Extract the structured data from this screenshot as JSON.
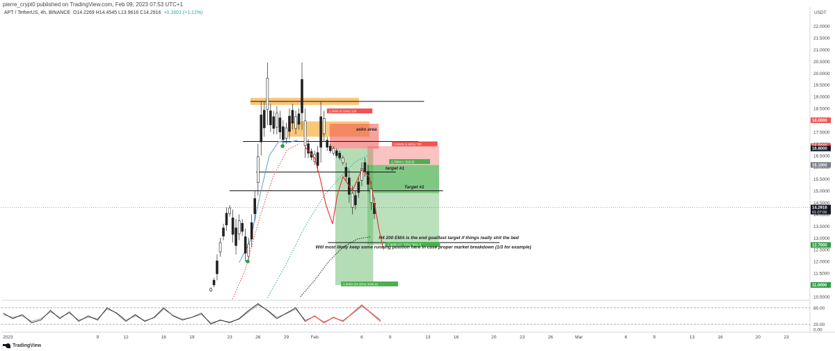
{
  "header": {
    "published": "pierre_crypt0 published on TradingView.com, Feb 09, 2023 07:53 UTC+1",
    "symbol": "APT / TetherUS, 4h, BINANCE",
    "ohlc": "O14.2269 H14.4545 L13.9616 C14.2916",
    "change": "+0.1601 (+1.12%)"
  },
  "footer": {
    "brand": "TradingView"
  },
  "colors": {
    "up": "#26a69a",
    "down": "#ef5350",
    "candle": "#222222",
    "supply": "#f7a930",
    "red_zone": "#ef5350",
    "green_zone": "#4caf50",
    "ema_blue": "#5b9bd5",
    "ema_red": "#e53935",
    "ema_teal": "#26a69a"
  },
  "chart_data": {
    "type": "candlestick",
    "currency": "USDT",
    "y_axis_ticks": [
      "22.0000",
      "21.5000",
      "21.0000",
      "20.5000",
      "20.0000",
      "19.5000",
      "19.0000",
      "18.5000",
      "18.0000",
      "17.5000",
      "17.0000",
      "16.5000",
      "16.0000",
      "15.5000",
      "15.0000",
      "14.5000",
      "14.0000",
      "13.5000",
      "13.0000",
      "12.5000",
      "12.0000",
      "11.5000",
      "11.0000",
      "10.5000"
    ],
    "ylim": [
      10.35,
      22.4
    ],
    "x_axis_ticks": [
      {
        "label": "2023",
        "day": -1.5
      },
      {
        "label": "9",
        "day": 8
      },
      {
        "label": "12",
        "day": 11
      },
      {
        "label": "16",
        "day": 15
      },
      {
        "label": "19",
        "day": 18
      },
      {
        "label": "23",
        "day": 22
      },
      {
        "label": "26",
        "day": 25
      },
      {
        "label": "29",
        "day": 28
      },
      {
        "label": "Feb",
        "day": 31
      },
      {
        "label": "6",
        "day": 36
      },
      {
        "label": "9",
        "day": 39
      },
      {
        "label": "13",
        "day": 43
      },
      {
        "label": "16",
        "day": 46
      },
      {
        "label": "20",
        "day": 50
      },
      {
        "label": "23",
        "day": 53
      },
      {
        "label": "26",
        "day": 56
      },
      {
        "label": "Mar",
        "day": 59
      },
      {
        "label": "6",
        "day": 64
      },
      {
        "label": "9",
        "day": 67
      },
      {
        "label": "13",
        "day": 71
      },
      {
        "label": "16",
        "day": 74
      },
      {
        "label": "20",
        "day": 78
      },
      {
        "label": "23",
        "day": 81
      }
    ],
    "price_labels": [
      {
        "label": "18.0000",
        "value": 18.0,
        "color": "#ef5350"
      },
      {
        "label": "16.9000",
        "value": 16.9,
        "color": "#ef5350"
      },
      {
        "label": "16.8000",
        "value": 16.8,
        "color": "#131722"
      },
      {
        "label": "16.1000",
        "value": 16.1,
        "color": "#787b86"
      },
      {
        "label": "14.2916",
        "value": 14.2916,
        "sub": "01:07:00",
        "color": "#131722"
      },
      {
        "label": "12.7000",
        "value": 12.7,
        "color": "#2e9e44"
      },
      {
        "label": "11.0000",
        "value": 11.0,
        "color": "#2e9e44"
      }
    ],
    "candles": [
      [
        20,
        10.7,
        10.9
      ],
      [
        20.33,
        10.9,
        11.3
      ],
      [
        20.66,
        11.2,
        12.3
      ],
      [
        21,
        12.2,
        13.0
      ],
      [
        21.33,
        12.9,
        13.6
      ],
      [
        21.66,
        13.3,
        14.3
      ],
      [
        22,
        13.9,
        14.4
      ],
      [
        22.33,
        12.8,
        14.2
      ],
      [
        22.66,
        12.3,
        13.8
      ],
      [
        23,
        12.9,
        14.0
      ],
      [
        23.33,
        13.1,
        13.8
      ],
      [
        23.66,
        12.0,
        13.4
      ],
      [
        24,
        11.95,
        13.0
      ],
      [
        24.33,
        12.6,
        14.0
      ],
      [
        24.66,
        13.7,
        15.0
      ],
      [
        25,
        14.8,
        17.0
      ],
      [
        25.33,
        16.5,
        18.8
      ],
      [
        25.66,
        17.3,
        18.8
      ],
      [
        26,
        17.8,
        20.45
      ],
      [
        26.33,
        17.5,
        18.7
      ],
      [
        26.66,
        17.4,
        18.4
      ],
      [
        27,
        17.4,
        18.6
      ],
      [
        27.33,
        17.2,
        18.4
      ],
      [
        27.66,
        16.9,
        18.0
      ],
      [
        28,
        17.0,
        17.9
      ],
      [
        28.33,
        17.2,
        18.5
      ],
      [
        28.66,
        17.6,
        18.7
      ],
      [
        29,
        17.4,
        18.4
      ],
      [
        29.33,
        17.6,
        18.5
      ],
      [
        29.66,
        17.6,
        20.45
      ],
      [
        30,
        16.4,
        18.5
      ],
      [
        30.33,
        16.4,
        17.2
      ],
      [
        30.66,
        16.3,
        16.8
      ],
      [
        31,
        16.1,
        16.7
      ],
      [
        31.33,
        15.8,
        16.9
      ],
      [
        31.66,
        16.2,
        18.8
      ],
      [
        32,
        17.1,
        18.4
      ],
      [
        32.33,
        16.7,
        17.3
      ],
      [
        32.66,
        16.6,
        17.0
      ],
      [
        33,
        16.5,
        16.9
      ],
      [
        33.33,
        16.4,
        16.8
      ],
      [
        33.66,
        16.3,
        16.7
      ],
      [
        34,
        16.1,
        16.5
      ],
      [
        34.33,
        15.4,
        16.2
      ],
      [
        34.66,
        14.5,
        15.9
      ],
      [
        35,
        14.0,
        15.2
      ],
      [
        35.33,
        14.2,
        15.0
      ],
      [
        35.66,
        14.7,
        15.6
      ],
      [
        36,
        15.2,
        16.2
      ],
      [
        36.33,
        15.6,
        16.4
      ],
      [
        36.66,
        15.0,
        16.1
      ],
      [
        37,
        14.2,
        15.4
      ],
      [
        37.33,
        13.8,
        14.7
      ]
    ],
    "ema_blue": [
      [
        23,
        11.95
      ],
      [
        24.2,
        12.9
      ],
      [
        25.2,
        14.8
      ],
      [
        26.2,
        16.5
      ],
      [
        27.2,
        17.1
      ],
      [
        28.2,
        17.05
      ],
      [
        29.2,
        17.15
      ]
    ],
    "ema_red_dotted": [
      [
        22.3,
        10.4
      ],
      [
        23.6,
        11.6
      ],
      [
        25.2,
        13.9
      ],
      [
        26.6,
        15.6
      ],
      [
        28.1,
        16.75
      ],
      [
        29.4,
        17.0
      ]
    ],
    "ema_teal_dotted": [
      [
        26.0,
        10.45
      ],
      [
        28.0,
        11.9
      ],
      [
        30.0,
        13.5
      ],
      [
        32.0,
        14.8
      ],
      [
        34.0,
        15.7
      ],
      [
        35.2,
        16.2
      ],
      [
        36.6,
        16.5
      ]
    ],
    "ema_black_dotted": [
      [
        29.5,
        10.5
      ],
      [
        31.0,
        11.2
      ],
      [
        32.5,
        12.0
      ],
      [
        34.0,
        12.6
      ],
      [
        35.5,
        12.95
      ],
      [
        37.0,
        13.05
      ]
    ],
    "ema_red_solid": [
      [
        30.0,
        16.85
      ],
      [
        31.0,
        16.4
      ],
      [
        31.6,
        15.5
      ],
      [
        32.2,
        14.4
      ],
      [
        32.9,
        13.6
      ],
      [
        33.4,
        14.8
      ],
      [
        34.0,
        15.6
      ],
      [
        35.0,
        15.0
      ],
      [
        36.0,
        15.9
      ],
      [
        36.8,
        15.6
      ],
      [
        37.3,
        14.6
      ],
      [
        37.8,
        13.4
      ],
      [
        38.3,
        12.5
      ]
    ],
    "supply_zones": [
      {
        "x0": 24.2,
        "x1": 35.7,
        "y0": 18.65,
        "y1": 18.95
      },
      {
        "x0": 28.2,
        "x1": 36.8,
        "y0": 17.3,
        "y1": 17.95
      }
    ],
    "hlines": [
      {
        "x0": 24.2,
        "x1": 42.6,
        "y": 18.8
      },
      {
        "x0": 23.4,
        "x1": 42.0,
        "y": 17.1
      },
      {
        "x0": 24.8,
        "x1": 39.6,
        "y": 15.8
      },
      {
        "x0": 22.0,
        "x1": 44.6,
        "y": 15.0
      },
      {
        "x0": 32.4,
        "x1": 50.6,
        "y": 12.8
      }
    ],
    "short_setup": {
      "x0": 32.6,
      "x1": 37.8,
      "entry": 16.8,
      "stop": 17.85,
      "target": 11.0
    },
    "long_setup": {
      "x0": 36.6,
      "x1": 44.2,
      "entry": 16.1,
      "stop": 16.9,
      "target1": 14.9,
      "target2": 12.7
    },
    "text_annotations": [
      {
        "text": "asks area",
        "x": 35.4,
        "y": 17.55
      },
      {
        "text": "Target #1",
        "x": 40.5,
        "y": 15.1
      },
      {
        "text": "target #1",
        "x": 38.5,
        "y": 15.9
      },
      {
        "text": "H4 200 EMA is the end goal/last target if things really shit the bed",
        "x": 37.8,
        "y": 12.95
      },
      {
        "text": "Will most likely keep some running position here in case proper market breakdown (1/3 for example)",
        "x": 31.1,
        "y": 12.55
      }
    ],
    "box_labels": [
      {
        "text": "1.0000 (6.33%) 100",
        "x": 32.3,
        "y": 18.35,
        "color": "#ef5350"
      },
      {
        "text": "0.9008 (4.93%) 790",
        "x": 39.2,
        "y": 16.95,
        "color": "#ef5350"
      },
      {
        "text": "1.7094 (~ 515.5)",
        "x": 38.9,
        "y": 16.2,
        "color": "#4caf50"
      },
      {
        "text": "0.9008 (21.33%) 3002.5",
        "x": 38.5,
        "y": 12.68,
        "color": "#4caf50"
      },
      {
        "text": "0.9000 (24.35%) 3346.01",
        "x": 33.8,
        "y": 11.0,
        "color": "#4caf50"
      }
    ],
    "markers": [
      {
        "x": 23.9,
        "y": 12.0,
        "color": "#2e9e44"
      },
      {
        "x": 27.6,
        "y": 16.9,
        "color": "#2e9e44"
      }
    ],
    "oscillator": {
      "levels": [
        {
          "label": "80.00",
          "value": 80
        },
        {
          "label": "20.00",
          "value": 20
        },
        {
          "label": "0.00",
          "value": 0
        }
      ],
      "k": [
        [
          -2,
          60
        ],
        [
          -1,
          40
        ],
        [
          0,
          55
        ],
        [
          1,
          25
        ],
        [
          2,
          35
        ],
        [
          3,
          70
        ],
        [
          4,
          40
        ],
        [
          5,
          65
        ],
        [
          6,
          30
        ],
        [
          7,
          50
        ],
        [
          8,
          35
        ],
        [
          9,
          80
        ],
        [
          10,
          60
        ],
        [
          11,
          30
        ],
        [
          12,
          55
        ],
        [
          13,
          30
        ],
        [
          14,
          45
        ],
        [
          15,
          80
        ],
        [
          16,
          50
        ],
        [
          17,
          35
        ],
        [
          18,
          45
        ],
        [
          19,
          60
        ],
        [
          20,
          20
        ],
        [
          21,
          35
        ],
        [
          22,
          25
        ],
        [
          23,
          40
        ],
        [
          24,
          70
        ],
        [
          25,
          95
        ],
        [
          26,
          70
        ],
        [
          27,
          40
        ],
        [
          28,
          60
        ],
        [
          29,
          80
        ],
        [
          30,
          30
        ],
        [
          31,
          50
        ],
        [
          32,
          25
        ],
        [
          33,
          45
        ],
        [
          34,
          30
        ],
        [
          35,
          60
        ],
        [
          36,
          90
        ],
        [
          37,
          60
        ],
        [
          38,
          30
        ]
      ],
      "d": [
        [
          -2,
          55
        ],
        [
          -1,
          45
        ],
        [
          0,
          50
        ],
        [
          1,
          30
        ],
        [
          2,
          40
        ],
        [
          3,
          65
        ],
        [
          4,
          45
        ],
        [
          5,
          60
        ],
        [
          6,
          35
        ],
        [
          7,
          45
        ],
        [
          8,
          40
        ],
        [
          9,
          75
        ],
        [
          10,
          62
        ],
        [
          11,
          35
        ],
        [
          12,
          50
        ],
        [
          13,
          33
        ],
        [
          14,
          43
        ],
        [
          15,
          75
        ],
        [
          16,
          52
        ],
        [
          17,
          38
        ],
        [
          18,
          45
        ],
        [
          19,
          55
        ],
        [
          20,
          25
        ],
        [
          21,
          33
        ],
        [
          22,
          28
        ],
        [
          23,
          38
        ],
        [
          24,
          65
        ],
        [
          25,
          90
        ],
        [
          26,
          72
        ],
        [
          27,
          45
        ],
        [
          28,
          58
        ],
        [
          29,
          75
        ],
        [
          30,
          35
        ],
        [
          31,
          48
        ],
        [
          32,
          28
        ],
        [
          33,
          43
        ],
        [
          34,
          33
        ],
        [
          35,
          58
        ],
        [
          36,
          85
        ],
        [
          37,
          62
        ],
        [
          38,
          35
        ]
      ],
      "red_range": [
        29.8,
        38.3
      ]
    }
  }
}
